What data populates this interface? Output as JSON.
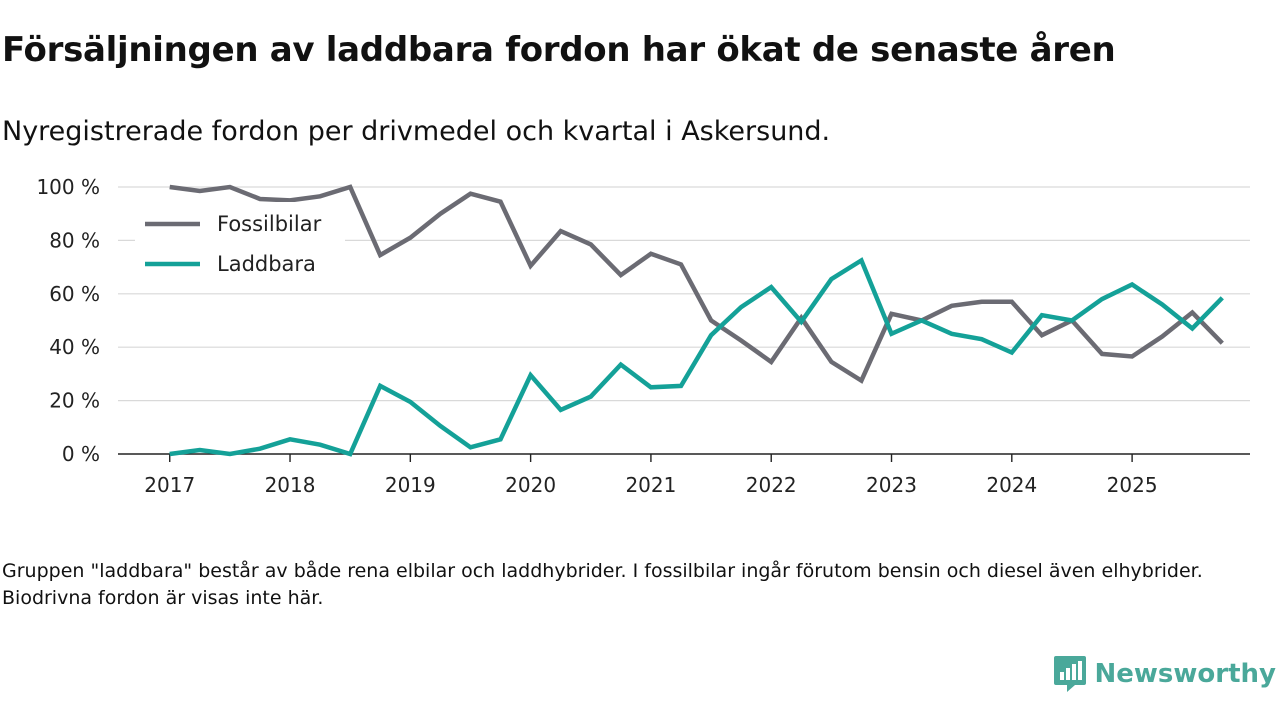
{
  "title": "Försäljningen av laddbara fordon har ökat de senaste åren",
  "subtitle": "Nyregistrerade fordon per drivmedel och kvartal i Askersund.",
  "footnote": "Gruppen \"laddbara\" består av både rena elbilar och laddhybrider. I fossilbilar ingår förutom bensin och diesel även elhybrider. Biodrivna fordon är visas inte här.",
  "brand": {
    "name": "Newsworthy",
    "icon": "newsworthy-logo-icon",
    "color": "#4aa89a"
  },
  "chart_data": {
    "type": "line",
    "title": "Försäljningen av laddbara fordon har ökat de senaste åren",
    "subtitle": "Nyregistrerade fordon per drivmedel och kvartal i Askersund.",
    "xlabel": "",
    "ylabel": "",
    "x": [
      2017.0,
      2017.25,
      2017.5,
      2017.75,
      2018.0,
      2018.25,
      2018.5,
      2018.75,
      2019.0,
      2019.25,
      2019.5,
      2019.75,
      2020.0,
      2020.25,
      2020.5,
      2020.75,
      2021.0,
      2021.25,
      2021.5,
      2021.75,
      2022.0,
      2022.25,
      2022.5,
      2022.75,
      2023.0,
      2023.25,
      2023.5,
      2023.75,
      2024.0,
      2024.25,
      2024.5,
      2024.75,
      2025.0,
      2025.25,
      2025.5,
      2025.75
    ],
    "xlim": [
      2016.57,
      2025.98
    ],
    "ylim": [
      0,
      100
    ],
    "x_ticks": [
      2017,
      2018,
      2019,
      2020,
      2021,
      2022,
      2023,
      2024,
      2025
    ],
    "x_tick_labels": [
      "2017",
      "2018",
      "2019",
      "2020",
      "2021",
      "2022",
      "2023",
      "2024",
      "2025"
    ],
    "y_ticks": [
      0,
      20,
      40,
      60,
      80,
      100
    ],
    "y_tick_labels": [
      "0 %",
      "20 %",
      "40 %",
      "60 %",
      "80 %",
      "100 %"
    ],
    "grid": "horizontal",
    "legend_position": "top-left",
    "series": [
      {
        "name": "Fossilbilar",
        "color": "#6b6b73",
        "values": [
          100,
          98.5,
          100,
          95.5,
          95,
          96.5,
          100,
          74.5,
          81,
          90,
          97.5,
          94.5,
          70.5,
          83.5,
          78.5,
          67,
          75,
          71,
          50,
          42.5,
          34.5,
          51,
          34.5,
          27.5,
          52.5,
          50,
          55.5,
          57,
          57,
          44.5,
          50,
          37.5,
          36.5,
          44,
          53,
          41.5
        ]
      },
      {
        "name": "Laddbara",
        "color": "#14a198",
        "values": [
          0,
          1.5,
          0,
          2,
          5.5,
          3.5,
          0,
          25.5,
          19.5,
          10.5,
          2.5,
          5.5,
          29.5,
          16.5,
          21.5,
          33.5,
          25,
          25.5,
          44.5,
          55,
          62.5,
          49.5,
          65.5,
          72.5,
          45,
          50,
          45,
          43,
          38,
          52,
          50,
          58,
          63.5,
          56,
          47,
          58.5
        ]
      }
    ]
  }
}
